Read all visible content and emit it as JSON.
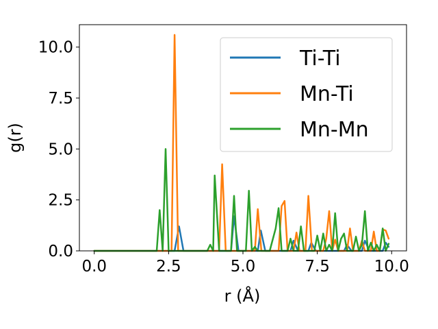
{
  "chart_data": {
    "type": "line",
    "xlabel": "r (Å)",
    "ylabel": "g(r)",
    "xlim": [
      -0.5,
      10.5
    ],
    "ylim": [
      0,
      11.1
    ],
    "xticks": [
      "0.0",
      "2.5",
      "5.0",
      "7.5",
      "10.0"
    ],
    "yticks": [
      "0.0",
      "2.5",
      "5.0",
      "7.5",
      "10.0"
    ],
    "grid": false,
    "legend": "top-right",
    "series": [
      {
        "name": "Ti-Ti",
        "color": "#1f77b4",
        "points": [
          [
            0,
            0
          ],
          [
            2.7,
            0
          ],
          [
            2.85,
            1.2
          ],
          [
            3.0,
            0
          ],
          [
            4.6,
            0
          ],
          [
            4.7,
            1.7
          ],
          [
            4.85,
            0
          ],
          [
            5.5,
            0
          ],
          [
            5.6,
            1.0
          ],
          [
            5.75,
            0
          ],
          [
            6.6,
            0
          ],
          [
            6.7,
            0.5
          ],
          [
            6.85,
            0
          ],
          [
            7.2,
            0
          ],
          [
            7.3,
            0.4
          ],
          [
            7.45,
            0
          ],
          [
            8.4,
            0
          ],
          [
            8.5,
            0.3
          ],
          [
            8.65,
            0
          ],
          [
            9.0,
            0
          ],
          [
            9.1,
            0.5
          ],
          [
            9.25,
            0
          ],
          [
            9.7,
            0
          ],
          [
            9.8,
            0.4
          ],
          [
            9.9,
            0.2
          ]
        ]
      },
      {
        "name": "Mn-Ti",
        "color": "#ff7f0e",
        "points": [
          [
            0,
            0
          ],
          [
            2.6,
            0
          ],
          [
            2.7,
            10.6
          ],
          [
            2.82,
            0
          ],
          [
            4.2,
            0
          ],
          [
            4.3,
            4.25
          ],
          [
            4.42,
            0
          ],
          [
            5.4,
            0
          ],
          [
            5.5,
            2.05
          ],
          [
            5.62,
            0
          ],
          [
            6.2,
            0
          ],
          [
            6.3,
            2.2
          ],
          [
            6.4,
            2.45
          ],
          [
            6.5,
            0
          ],
          [
            6.7,
            0
          ],
          [
            6.8,
            0.9
          ],
          [
            6.9,
            0
          ],
          [
            7.1,
            0
          ],
          [
            7.2,
            2.7
          ],
          [
            7.32,
            0
          ],
          [
            7.7,
            0
          ],
          [
            7.8,
            0.6
          ],
          [
            7.9,
            1.95
          ],
          [
            8.0,
            0
          ],
          [
            8.1,
            0.55
          ],
          [
            8.2,
            0
          ],
          [
            8.5,
            0
          ],
          [
            8.6,
            1.1
          ],
          [
            8.7,
            0
          ],
          [
            8.9,
            0
          ],
          [
            9.0,
            0.5
          ],
          [
            9.1,
            0
          ],
          [
            9.3,
            0
          ],
          [
            9.4,
            0.95
          ],
          [
            9.5,
            0
          ],
          [
            9.6,
            0
          ],
          [
            9.7,
            1.05
          ],
          [
            9.8,
            1.0
          ],
          [
            9.9,
            0.6
          ]
        ]
      },
      {
        "name": "Mn-Mn",
        "color": "#2ca02c",
        "points": [
          [
            0,
            0
          ],
          [
            2.1,
            0
          ],
          [
            2.2,
            2.0
          ],
          [
            2.3,
            0
          ],
          [
            2.4,
            5.0
          ],
          [
            2.5,
            0
          ],
          [
            3.8,
            0
          ],
          [
            3.9,
            0.3
          ],
          [
            4.0,
            0
          ],
          [
            4.05,
            3.7
          ],
          [
            4.2,
            0
          ],
          [
            4.6,
            0
          ],
          [
            4.7,
            2.7
          ],
          [
            4.8,
            0
          ],
          [
            5.1,
            0
          ],
          [
            5.2,
            2.95
          ],
          [
            5.3,
            0
          ],
          [
            5.4,
            0.2
          ],
          [
            5.5,
            0
          ],
          [
            5.9,
            0
          ],
          [
            6.1,
            1.1
          ],
          [
            6.2,
            2.1
          ],
          [
            6.3,
            0
          ],
          [
            6.5,
            0
          ],
          [
            6.6,
            0.6
          ],
          [
            6.7,
            0
          ],
          [
            6.85,
            0
          ],
          [
            6.95,
            1.2
          ],
          [
            7.05,
            0
          ],
          [
            7.4,
            0
          ],
          [
            7.5,
            0.75
          ],
          [
            7.6,
            0
          ],
          [
            7.7,
            0.85
          ],
          [
            7.8,
            0
          ],
          [
            7.9,
            0.3
          ],
          [
            8.0,
            0
          ],
          [
            8.1,
            1.85
          ],
          [
            8.2,
            0
          ],
          [
            8.3,
            0.6
          ],
          [
            8.4,
            0.85
          ],
          [
            8.5,
            0
          ],
          [
            8.7,
            0
          ],
          [
            8.8,
            0.7
          ],
          [
            8.9,
            0
          ],
          [
            9.0,
            0.3
          ],
          [
            9.1,
            1.95
          ],
          [
            9.2,
            0
          ],
          [
            9.3,
            0.4
          ],
          [
            9.4,
            0
          ],
          [
            9.5,
            0.3
          ],
          [
            9.6,
            0
          ],
          [
            9.7,
            1.1
          ],
          [
            9.8,
            0
          ],
          [
            9.9,
            0.35
          ]
        ]
      }
    ]
  }
}
